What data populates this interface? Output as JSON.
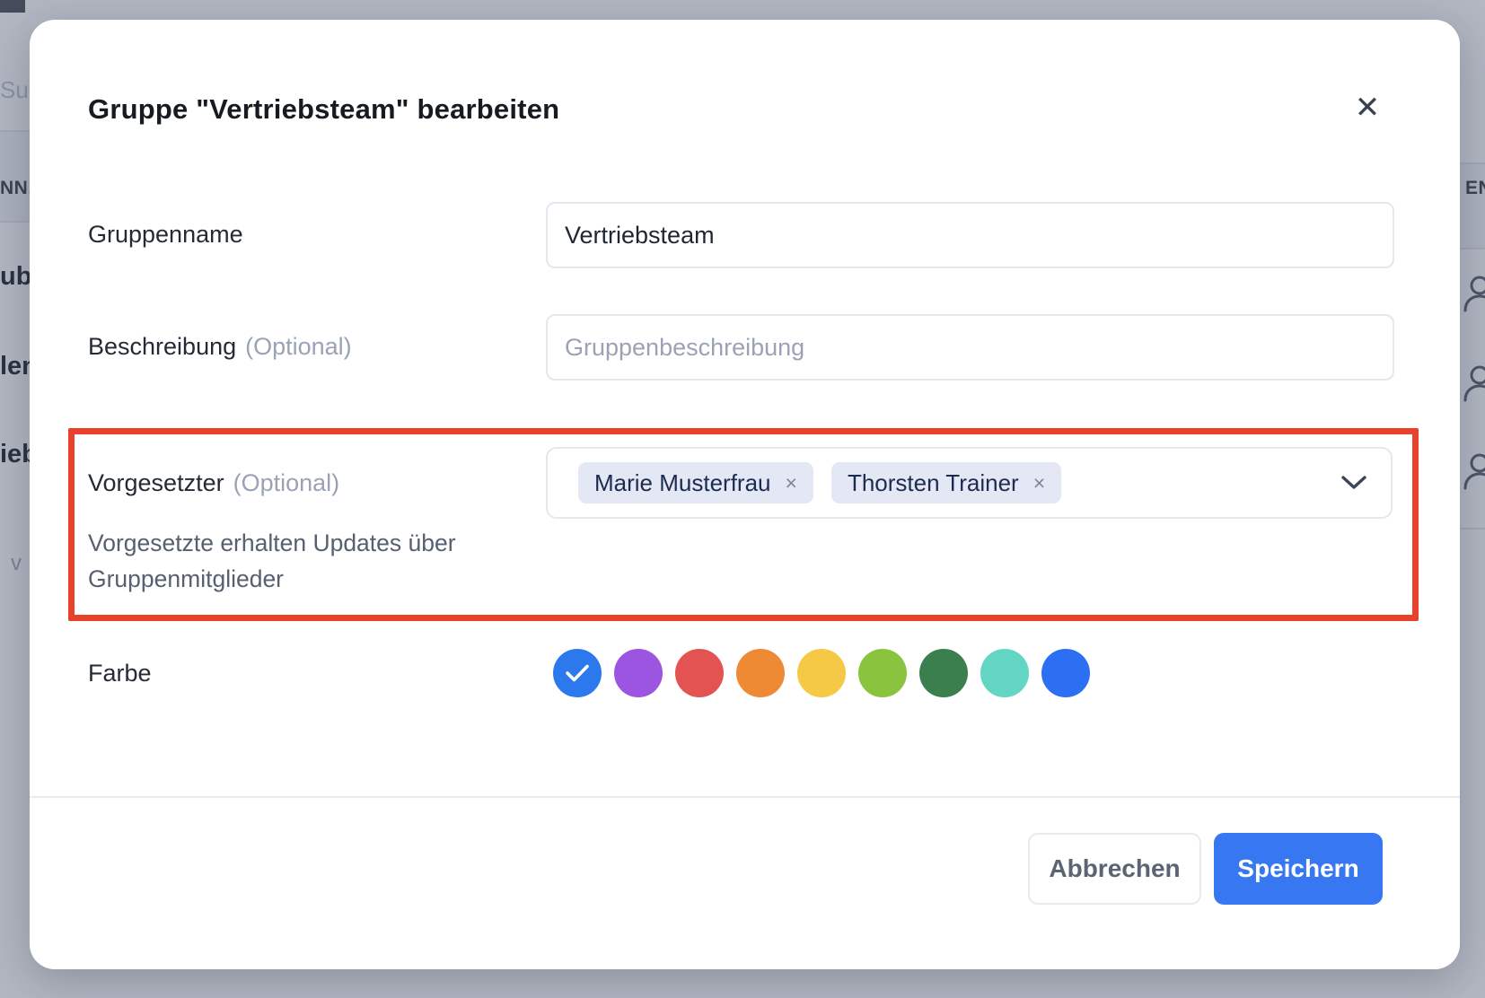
{
  "background": {
    "left_fragments": {
      "search_placeholder": "Suc",
      "column_header": "NN.",
      "row1": "ub",
      "row2": "len",
      "row3": "ieb",
      "pagination": "v"
    },
    "right_fragments": {
      "column_header": "EN",
      "person_icon_count": 3
    }
  },
  "modal": {
    "title": "Gruppe \"Vertriebsteam\" bearbeiten",
    "icons": {
      "close": "✕",
      "chip_remove": "×",
      "chevron": "chevron-down",
      "selected_check": "check"
    },
    "fields": {
      "group_name": {
        "label": "Gruppenname",
        "value": "Vertriebsteam"
      },
      "description": {
        "label": "Beschreibung",
        "optional": "(Optional)",
        "placeholder": "Gruppenbeschreibung"
      },
      "supervisor": {
        "label": "Vorgesetzter",
        "optional": "(Optional)",
        "helper_line1": "Vorgesetzte erhalten Updates über",
        "helper_line2": "Gruppenmitglieder",
        "tags": [
          "Marie Musterfrau",
          "Thorsten Trainer"
        ]
      },
      "color": {
        "label": "Farbe",
        "selected_index": 0,
        "swatches": [
          "#2b79ec",
          "#9c55e0",
          "#e25351",
          "#ee8a33",
          "#f5c845",
          "#8ac43e",
          "#3a7f4d",
          "#62d6c2",
          "#2d6ff2"
        ]
      }
    },
    "footer": {
      "cancel_label": "Abbrechen",
      "save_label": "Speichern"
    }
  },
  "annotation": {
    "highlight_color": "#e8422c"
  }
}
